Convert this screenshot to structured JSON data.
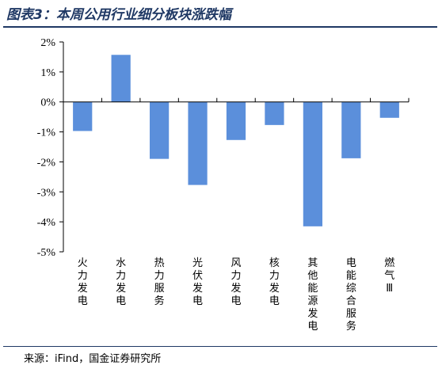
{
  "header": {
    "title": "图表3：本周公用行业细分板块涨跌幅"
  },
  "footer": {
    "source": "来源：iFind，国金证券研究所"
  },
  "chart_data": {
    "type": "bar",
    "title": "",
    "xlabel": "",
    "ylabel": "",
    "categories": [
      "火力发电",
      "水力发电",
      "热力服务",
      "光伏发电",
      "风力发电",
      "核力发电",
      "其他能源发电",
      "电能综合服务",
      "燃气Ⅲ"
    ],
    "values": [
      -0.97,
      1.57,
      -1.9,
      -2.77,
      -1.27,
      -0.77,
      -4.15,
      -1.88,
      -0.53
    ],
    "ylim": [
      -5,
      2
    ],
    "yticks": [
      2,
      1,
      0,
      -1,
      -2,
      -3,
      -4,
      -5
    ],
    "ytick_labels": [
      "2%",
      "1%",
      "0%",
      "-1%",
      "-2%",
      "-3%",
      "-4%",
      "-5%"
    ],
    "bar_color": "#5b8fdb",
    "grid": false,
    "legend": "none"
  }
}
